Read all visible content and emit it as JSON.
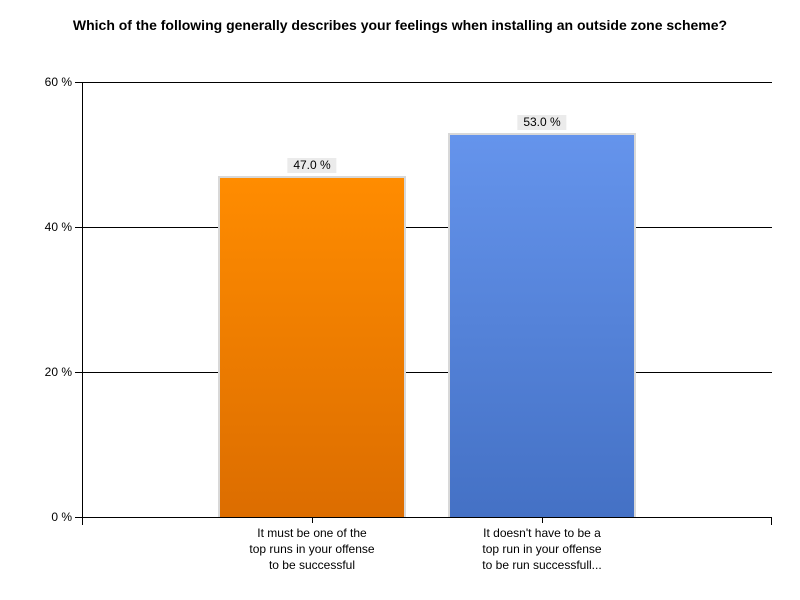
{
  "chart_data": {
    "type": "bar",
    "title": "Which of the following generally describes your feelings when installing an outside zone scheme?",
    "categories": [
      "It must be one of the\ntop runs in your offense\nto be successful",
      "It doesn't have to be a\ntop run in your offense\nto be run successfull..."
    ],
    "values": [
      47.0,
      53.0
    ],
    "value_labels": [
      "47.0 %",
      "53.0 %"
    ],
    "xlabel": "",
    "ylabel": "",
    "ylim": [
      0,
      60
    ],
    "yticks": [
      0,
      20,
      40,
      60
    ],
    "ytick_labels": [
      "0 %",
      "20 %",
      "40 %",
      "60 %"
    ],
    "grid": true,
    "legend": false,
    "colors": {
      "background": "#ffffff",
      "axis": "#000000",
      "text": "#000000",
      "bar_border": "#d8d8d8",
      "value_label_bg": "#ebebeb",
      "bar_gradients": [
        {
          "top": "#ff8c00",
          "bottom": "#dc6d00"
        },
        {
          "top": "#6594ec",
          "bottom": "#4471c5"
        }
      ]
    }
  }
}
